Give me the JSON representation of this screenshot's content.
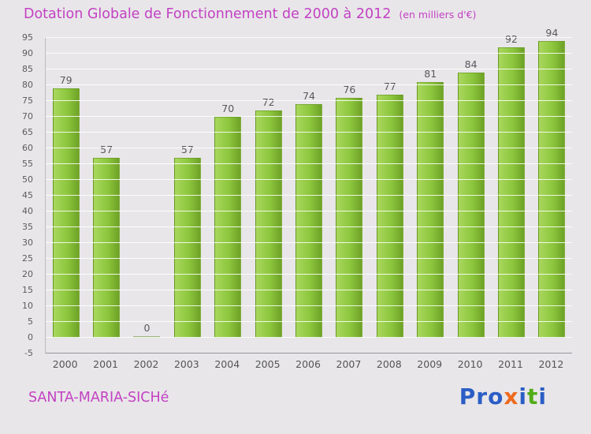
{
  "title": "Dotation Globale de Fonctionnement de 2000 à 2012",
  "subtitle": "(en milliers d'€)",
  "footer": {
    "commune": "SANTA-MARIA-SICHé"
  },
  "logo": {
    "name": "Proxiti",
    "letters": [
      {
        "ch": "P",
        "color": "#2b5ec5"
      },
      {
        "ch": "r",
        "color": "#2b5ec5"
      },
      {
        "ch": "o",
        "color": "#2b5ec5"
      },
      {
        "ch": "x",
        "color": "#ee6a1e"
      },
      {
        "ch": "i",
        "color": "#2b5ec5"
      },
      {
        "ch": "t",
        "color": "#53ad19"
      },
      {
        "ch": "i",
        "color": "#2b5ec5"
      }
    ]
  },
  "chart_data": {
    "type": "bar",
    "categories": [
      "2000",
      "2001",
      "2002",
      "2003",
      "2004",
      "2005",
      "2006",
      "2007",
      "2008",
      "2009",
      "2010",
      "2011",
      "2012"
    ],
    "values": [
      79,
      57,
      0,
      57,
      70,
      72,
      74,
      76,
      77,
      81,
      84,
      92,
      94
    ],
    "title": "Dotation Globale de Fonctionnement de 2000 à 2012",
    "xlabel": "",
    "ylabel": "",
    "ylim": [
      -5,
      95
    ],
    "ytick_step": 5,
    "grid": true,
    "legend": "none",
    "bar_color_light": "#a9d75d",
    "bar_color_dark": "#6ea227",
    "accent_color": "#c341c3"
  }
}
